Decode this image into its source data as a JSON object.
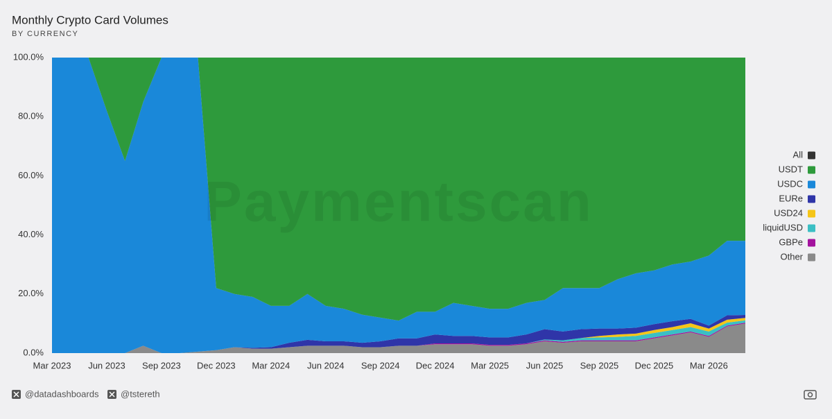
{
  "chart_data": {
    "type": "stacked-area",
    "title": "Monthly Crypto Card Volumes",
    "subtitle": "BY CURRENCY",
    "watermark": "Paymentscan",
    "categories": [
      "Mar 2023",
      null,
      null,
      "Jun 2023",
      null,
      null,
      "Sep 2023",
      null,
      null,
      "Dec 2023",
      null,
      null,
      "Mar 2024",
      null,
      null,
      "Jun 2024",
      null,
      null,
      "Sep 2024",
      null,
      null,
      "Dec 2024",
      null,
      null,
      "Mar 2025",
      null,
      null,
      "Jun 2025",
      null,
      null,
      "Sep 2025",
      null,
      null,
      "Dec 2025",
      null,
      null,
      "Mar 2026",
      null,
      null
    ],
    "ylim": [
      0,
      100
    ],
    "yticks": [
      {
        "value": 0,
        "label": "0.0%"
      },
      {
        "value": 20,
        "label": "20.0%"
      },
      {
        "value": 40,
        "label": "40.0%"
      },
      {
        "value": 60,
        "label": "60.0%"
      },
      {
        "value": 80,
        "label": "80.0%"
      },
      {
        "value": 100,
        "label": "100.0%"
      }
    ],
    "legend_position": "right",
    "total_series": {
      "name": "All",
      "color": "#333333"
    },
    "series": [
      {
        "name": "USDT",
        "color": "#2e9a3c",
        "values": [
          0,
          0,
          0,
          18,
          35,
          15,
          0,
          0,
          0,
          78,
          80,
          81,
          84,
          84,
          80,
          84,
          85,
          87,
          88,
          89,
          86,
          86,
          83,
          84,
          85,
          85,
          83,
          82,
          78,
          78,
          78,
          75,
          73,
          72,
          70,
          69,
          67,
          62,
          62
        ]
      },
      {
        "name": "USDC",
        "color": "#1a88d9",
        "values": [
          100,
          100,
          100,
          82,
          65,
          82.5,
          100,
          100,
          99.5,
          21,
          18,
          17.2,
          14,
          12.5,
          15.5,
          12,
          11,
          9.5,
          8,
          6,
          9,
          7.7,
          11.2,
          10.2,
          9.7,
          9.7,
          10.7,
          9.9,
          14.7,
          13.9,
          13.7,
          16.7,
          18.4,
          18.2,
          19.2,
          19.4,
          23.7,
          25.2,
          25.1
        ]
      },
      {
        "name": "EURe",
        "color": "#2f35a8",
        "values": [
          0,
          0,
          0,
          0,
          0,
          0,
          0,
          0,
          0,
          0,
          0,
          0.3,
          0.5,
          1.5,
          2,
          1.5,
          1.5,
          1.5,
          2,
          2.5,
          2.5,
          3,
          2.5,
          2.5,
          2.5,
          2.5,
          3,
          3.5,
          3,
          3,
          2.5,
          2,
          2,
          2,
          2,
          1.5,
          1,
          1.5,
          1
        ]
      },
      {
        "name": "USD24",
        "color": "#f5c518",
        "values": [
          0,
          0,
          0,
          0,
          0,
          0,
          0,
          0,
          0,
          0,
          0,
          0,
          0,
          0,
          0,
          0,
          0,
          0,
          0,
          0,
          0,
          0,
          0,
          0,
          0,
          0,
          0,
          0,
          0,
          0,
          0.5,
          0.8,
          0.8,
          1,
          1,
          1.3,
          1,
          1,
          0.8
        ]
      },
      {
        "name": "liquidUSD",
        "color": "#3bbfc4",
        "values": [
          0,
          0,
          0,
          0,
          0,
          0,
          0,
          0,
          0,
          0,
          0,
          0,
          0,
          0,
          0,
          0,
          0,
          0,
          0,
          0,
          0,
          0,
          0,
          0,
          0,
          0,
          0,
          0.3,
          0.5,
          0.8,
          1,
          1.2,
          1.5,
          1.5,
          1.5,
          1.5,
          1.5,
          1,
          0.8
        ]
      },
      {
        "name": "GBPe",
        "color": "#a3139e",
        "values": [
          0,
          0,
          0,
          0,
          0,
          0,
          0,
          0,
          0,
          0,
          0,
          0,
          0,
          0,
          0,
          0,
          0,
          0,
          0,
          0,
          0,
          0.3,
          0.3,
          0.3,
          0.3,
          0.3,
          0.3,
          0.3,
          0.3,
          0.3,
          0.3,
          0.3,
          0.3,
          0.3,
          0.3,
          0.3,
          0.3,
          0.3,
          0.3
        ]
      },
      {
        "name": "Other",
        "color": "#8a8a8a",
        "values": [
          0,
          0,
          0,
          0,
          0,
          2.5,
          0,
          0,
          0.5,
          1,
          2,
          1.5,
          1.5,
          2,
          2.5,
          2.5,
          2.5,
          2,
          2,
          2.5,
          2.5,
          3,
          3,
          3,
          2.5,
          2.5,
          3,
          4,
          3.5,
          4,
          4,
          4,
          4,
          5,
          6,
          7,
          5.5,
          9,
          10
        ]
      }
    ]
  },
  "footer": {
    "handles": [
      "@datadashboards",
      "@tstereth"
    ]
  }
}
